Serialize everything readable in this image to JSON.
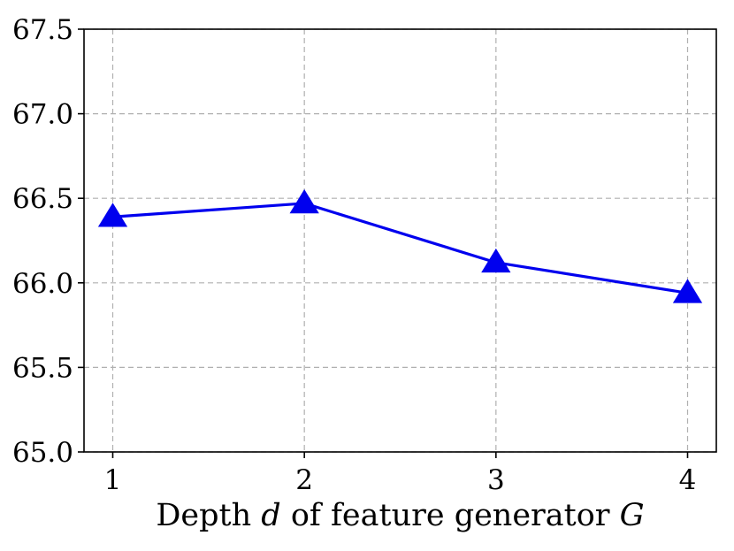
{
  "chart_data": {
    "type": "line",
    "x": [
      1,
      2,
      3,
      4
    ],
    "series": [
      {
        "values": [
          66.39,
          66.47,
          66.12,
          65.94
        ],
        "color": "#0000ee",
        "marker": "triangle-up"
      }
    ],
    "xlabel": {
      "prefix": "Depth ",
      "var1": "d",
      "middle": " of feature generator ",
      "var2": "G"
    },
    "ylabel": "",
    "title": "",
    "xlim": [
      0.85,
      4.15
    ],
    "ylim": [
      65.0,
      67.5
    ],
    "xticks": [
      1,
      2,
      3,
      4
    ],
    "xtick_labels": [
      "1",
      "2",
      "3",
      "4"
    ],
    "yticks": [
      65.0,
      65.5,
      66.0,
      66.5,
      67.0,
      67.5
    ],
    "ytick_labels": [
      "65.0",
      "65.5",
      "66.0",
      "66.5",
      "67.0",
      "67.5"
    ],
    "grid": true,
    "grid_style": "dashed"
  }
}
